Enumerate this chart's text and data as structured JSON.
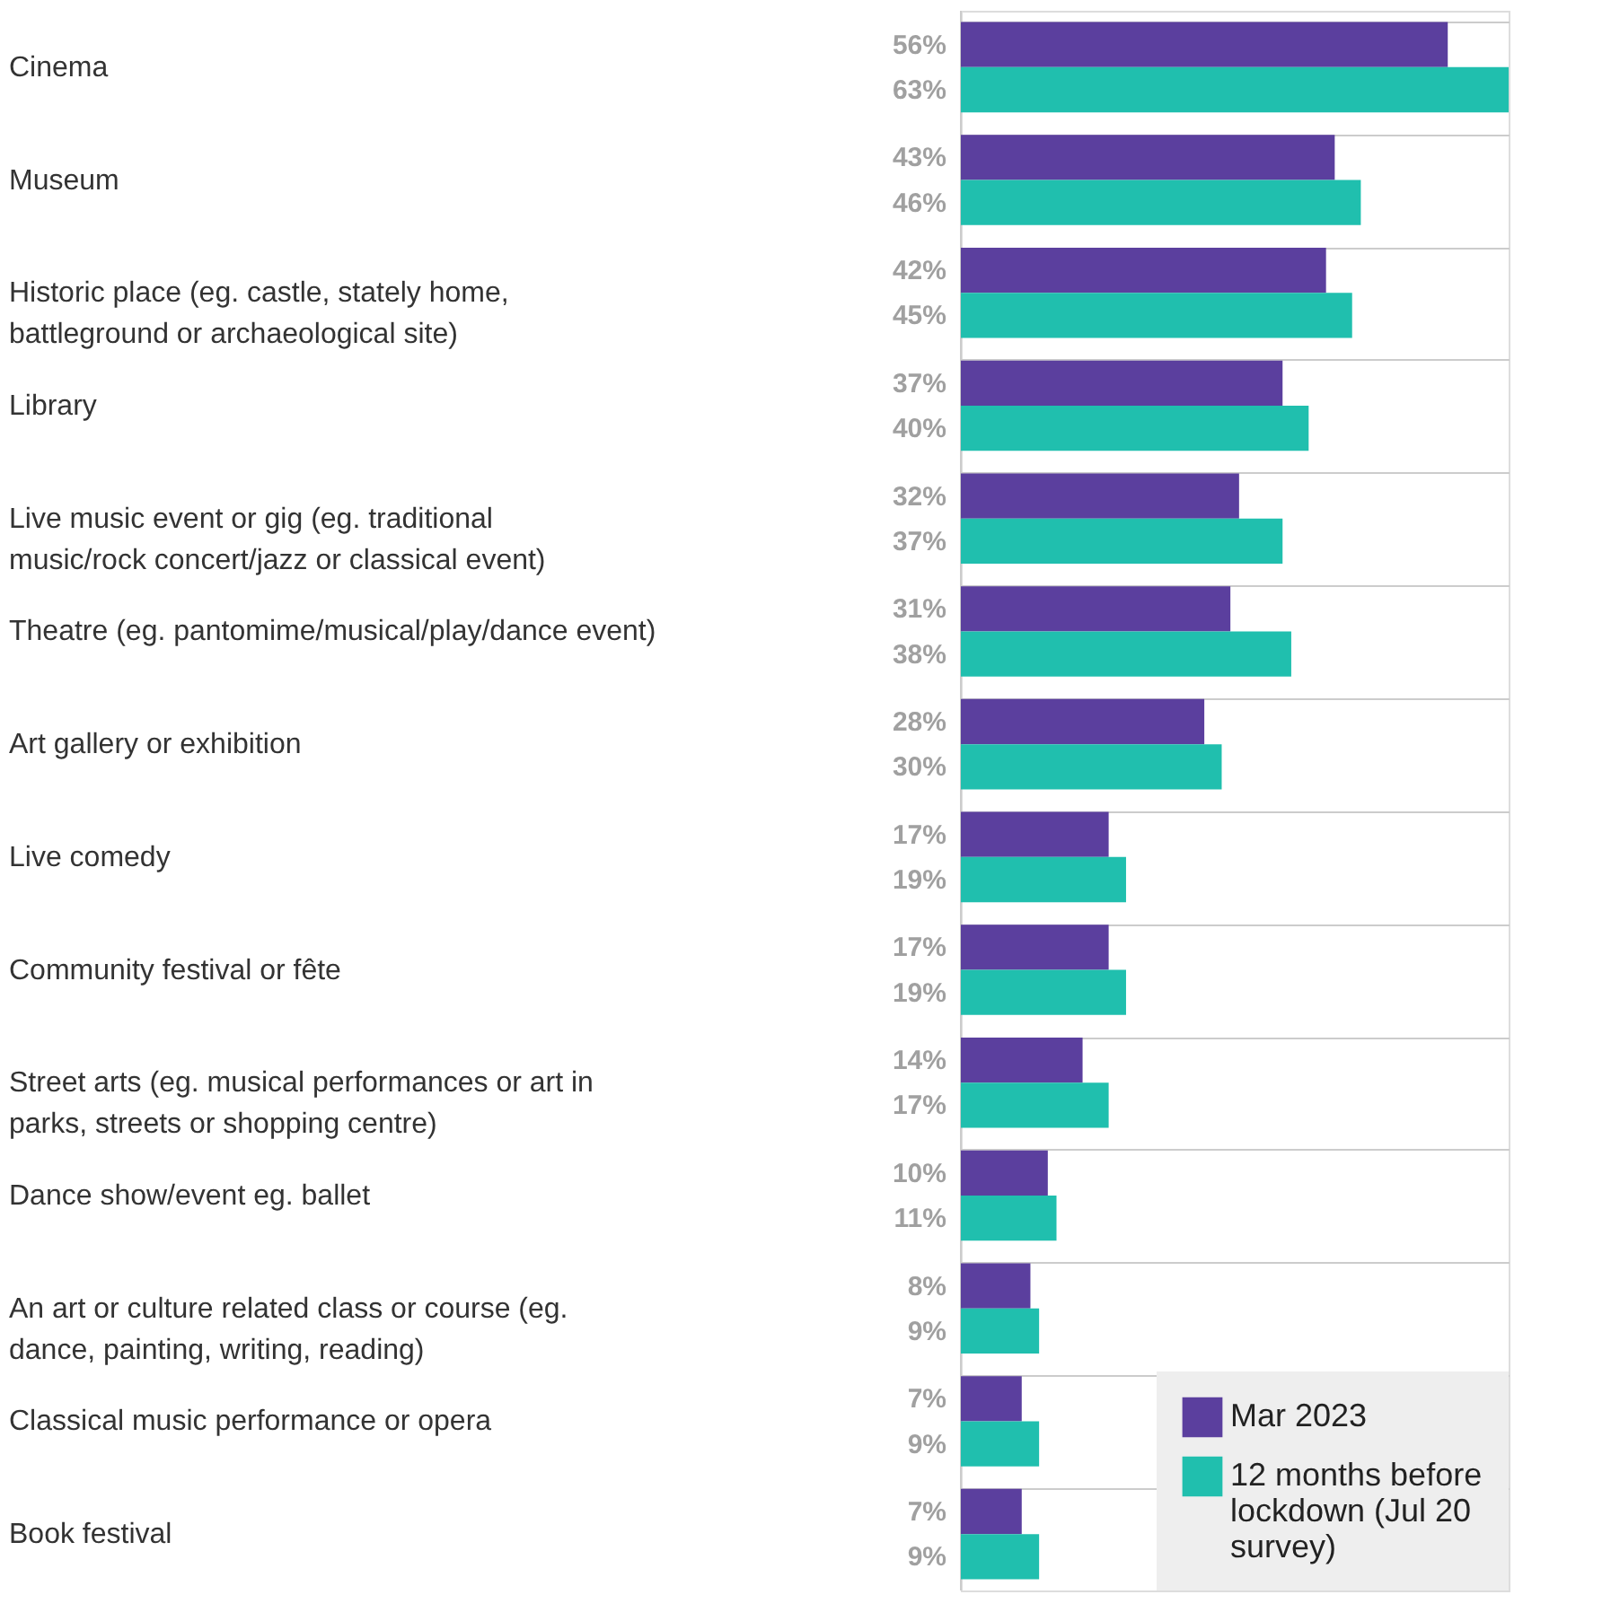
{
  "chart_data": {
    "type": "bar",
    "orientation": "horizontal",
    "categories": [
      "Cinema",
      "Museum",
      "Historic place (eg. castle, stately home, battleground or archaeological site)",
      "Library",
      "Live music event or gig (eg. traditional music/rock concert/jazz or classical event)",
      "Theatre (eg. pantomime/musical/play/dance event)",
      "Art gallery or exhibition",
      "Live comedy",
      "Community festival or fête",
      "Street arts (eg. musical performances or art in parks, streets or shopping centre)",
      "Dance show/event eg. ballet",
      "An art or culture related class or course (eg. dance, painting, writing, reading)",
      "Classical music performance or opera",
      "Book festival"
    ],
    "series": [
      {
        "name": "Mar 2023",
        "color": "#5b3f9e",
        "values": [
          56,
          43,
          42,
          37,
          32,
          31,
          28,
          17,
          17,
          14,
          10,
          8,
          7,
          7
        ],
        "value_labels": [
          "56%",
          "43%",
          "42%",
          "37%",
          "32%",
          "31%",
          "28%",
          "17%",
          "17%",
          "14%",
          "10%",
          "8%",
          "7%",
          "7%"
        ]
      },
      {
        "name": "12 months before lockdown (Jul 20 survey)",
        "color": "#20bfae",
        "values": [
          63,
          46,
          45,
          40,
          37,
          38,
          30,
          19,
          19,
          17,
          11,
          9,
          9,
          9
        ],
        "value_labels": [
          "63%",
          "46%",
          "45%",
          "40%",
          "37%",
          "38%",
          "30%",
          "19%",
          "19%",
          "17%",
          "11%",
          "9%",
          "9%",
          "9%"
        ]
      }
    ],
    "grid": "y",
    "legend": "bottom right",
    "tick_labels": false
  }
}
